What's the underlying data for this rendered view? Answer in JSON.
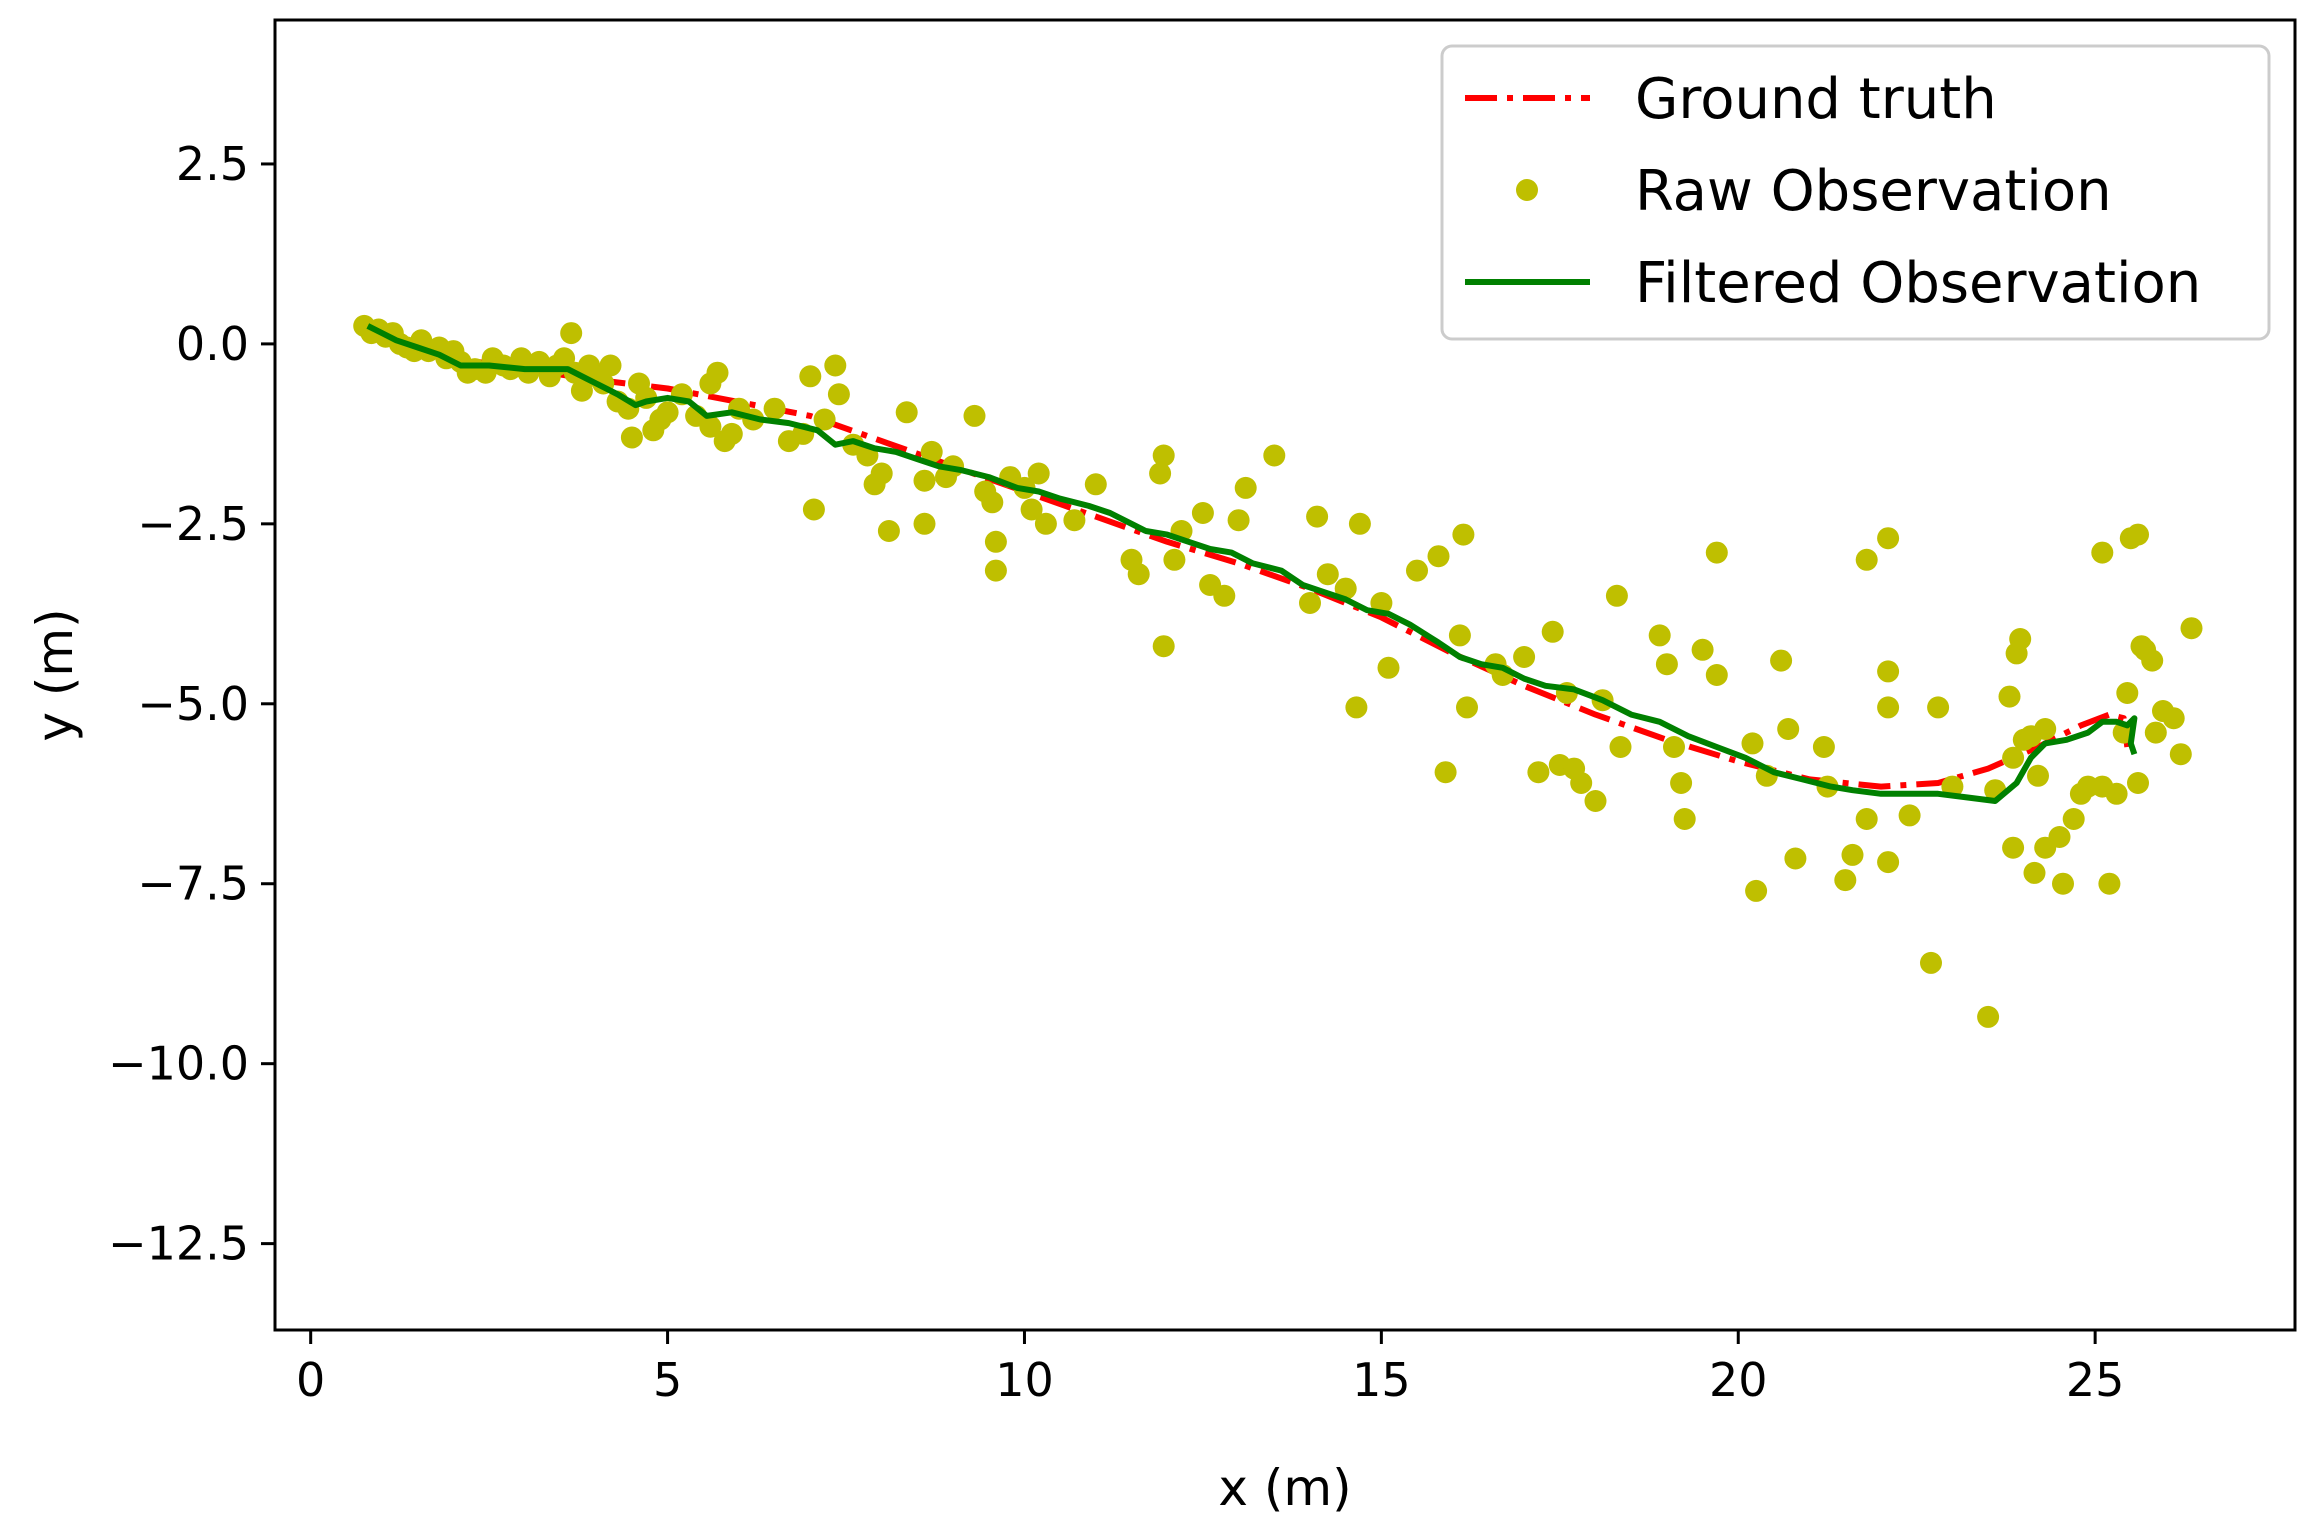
{
  "chart_data": {
    "type": "line",
    "title": "",
    "xlabel": "x (m)",
    "ylabel": "y (m)",
    "xlim": [
      -0.5,
      27.8
    ],
    "ylim": [
      -13.7,
      4.5
    ],
    "xticks": [
      0,
      5,
      10,
      15,
      20,
      25
    ],
    "yticks": [
      2.5,
      0.0,
      -2.5,
      -5.0,
      -7.5,
      -10.0,
      -12.5
    ],
    "xtick_labels": [
      "0",
      "5",
      "10",
      "15",
      "20",
      "25"
    ],
    "ytick_labels": [
      "2.5",
      "0.0",
      "−2.5",
      "−5.0",
      "−7.5",
      "−10.0",
      "−12.5"
    ],
    "grid": false,
    "legend_position": "top-right",
    "colors": {
      "ground_truth": "#ff0000",
      "raw": "#bfbf00",
      "filtered": "#008000"
    },
    "series": [
      {
        "name": "Ground truth",
        "style": "dashdot",
        "points": [
          [
            0.8,
            0.2
          ],
          [
            2,
            -0.2
          ],
          [
            3,
            -0.35
          ],
          [
            4,
            -0.5
          ],
          [
            5,
            -0.62
          ],
          [
            5.7,
            -0.75
          ],
          [
            7,
            -1.0
          ],
          [
            8,
            -1.35
          ],
          [
            9,
            -1.7
          ],
          [
            10,
            -2.05
          ],
          [
            11,
            -2.4
          ],
          [
            12,
            -2.75
          ],
          [
            13,
            -3.05
          ],
          [
            14,
            -3.4
          ],
          [
            15,
            -3.8
          ],
          [
            16,
            -4.3
          ],
          [
            17,
            -4.75
          ],
          [
            18,
            -5.15
          ],
          [
            19,
            -5.5
          ],
          [
            20,
            -5.8
          ],
          [
            21,
            -6.05
          ],
          [
            22,
            -6.15
          ],
          [
            22.8,
            -6.1
          ],
          [
            23.5,
            -5.9
          ],
          [
            24.2,
            -5.6
          ],
          [
            24.8,
            -5.3
          ],
          [
            25.2,
            -5.15
          ],
          [
            25.4,
            -5.2
          ],
          [
            25.45,
            -5.6
          ]
        ]
      },
      {
        "name": "Raw Observation",
        "style": "markers",
        "points": [
          [
            0.75,
            0.25
          ],
          [
            0.85,
            0.15
          ],
          [
            0.95,
            0.2
          ],
          [
            1.05,
            0.1
          ],
          [
            1.15,
            0.15
          ],
          [
            1.25,
            0.0
          ],
          [
            1.35,
            -0.05
          ],
          [
            1.45,
            -0.1
          ],
          [
            1.55,
            0.05
          ],
          [
            1.65,
            -0.1
          ],
          [
            1.8,
            -0.05
          ],
          [
            1.9,
            -0.2
          ],
          [
            2.0,
            -0.1
          ],
          [
            2.1,
            -0.25
          ],
          [
            2.2,
            -0.4
          ],
          [
            2.3,
            -0.35
          ],
          [
            2.45,
            -0.4
          ],
          [
            2.55,
            -0.2
          ],
          [
            2.7,
            -0.3
          ],
          [
            2.8,
            -0.35
          ],
          [
            2.95,
            -0.2
          ],
          [
            3.05,
            -0.4
          ],
          [
            3.2,
            -0.25
          ],
          [
            3.35,
            -0.45
          ],
          [
            3.45,
            -0.3
          ],
          [
            3.55,
            -0.2
          ],
          [
            3.65,
            0.15
          ],
          [
            3.7,
            -0.4
          ],
          [
            3.8,
            -0.65
          ],
          [
            3.9,
            -0.3
          ],
          [
            4.0,
            -0.45
          ],
          [
            4.1,
            -0.55
          ],
          [
            4.2,
            -0.3
          ],
          [
            4.3,
            -0.8
          ],
          [
            4.45,
            -0.9
          ],
          [
            4.5,
            -1.3
          ],
          [
            4.6,
            -0.55
          ],
          [
            4.7,
            -0.75
          ],
          [
            4.8,
            -1.2
          ],
          [
            4.9,
            -1.05
          ],
          [
            5.0,
            -0.95
          ],
          [
            5.2,
            -0.7
          ],
          [
            5.4,
            -1.0
          ],
          [
            5.6,
            -0.55
          ],
          [
            5.6,
            -1.15
          ],
          [
            5.7,
            -0.4
          ],
          [
            5.8,
            -1.35
          ],
          [
            5.9,
            -1.25
          ],
          [
            6.0,
            -0.9
          ],
          [
            6.2,
            -1.05
          ],
          [
            6.5,
            -0.9
          ],
          [
            6.7,
            -1.35
          ],
          [
            6.9,
            -1.25
          ],
          [
            7.0,
            -0.45
          ],
          [
            7.05,
            -2.3
          ],
          [
            7.2,
            -1.05
          ],
          [
            7.35,
            -0.3
          ],
          [
            7.4,
            -0.7
          ],
          [
            7.6,
            -1.4
          ],
          [
            7.8,
            -1.55
          ],
          [
            7.9,
            -1.95
          ],
          [
            8.0,
            -1.8
          ],
          [
            8.1,
            -2.6
          ],
          [
            8.35,
            -0.95
          ],
          [
            8.6,
            -1.9
          ],
          [
            8.6,
            -2.5
          ],
          [
            8.7,
            -1.5
          ],
          [
            8.9,
            -1.85
          ],
          [
            9.0,
            -1.7
          ],
          [
            9.3,
            -1.0
          ],
          [
            9.45,
            -2.05
          ],
          [
            9.55,
            -2.2
          ],
          [
            9.6,
            -2.75
          ],
          [
            9.6,
            -3.15
          ],
          [
            9.8,
            -1.85
          ],
          [
            10.0,
            -2.0
          ],
          [
            10.1,
            -2.3
          ],
          [
            10.2,
            -1.8
          ],
          [
            10.3,
            -2.5
          ],
          [
            10.7,
            -2.45
          ],
          [
            11.0,
            -1.95
          ],
          [
            11.5,
            -3.0
          ],
          [
            11.6,
            -3.2
          ],
          [
            11.9,
            -1.8
          ],
          [
            11.95,
            -1.55
          ],
          [
            11.95,
            -4.2
          ],
          [
            12.1,
            -3.0
          ],
          [
            12.2,
            -2.6
          ],
          [
            12.5,
            -2.35
          ],
          [
            12.6,
            -3.35
          ],
          [
            12.8,
            -3.5
          ],
          [
            13.0,
            -2.45
          ],
          [
            13.1,
            -2.0
          ],
          [
            13.5,
            -1.55
          ],
          [
            14.0,
            -3.6
          ],
          [
            14.1,
            -2.4
          ],
          [
            14.25,
            -3.2
          ],
          [
            14.5,
            -3.4
          ],
          [
            14.65,
            -5.05
          ],
          [
            14.7,
            -2.5
          ],
          [
            15.0,
            -3.6
          ],
          [
            15.1,
            -4.5
          ],
          [
            15.5,
            -3.15
          ],
          [
            15.8,
            -2.95
          ],
          [
            15.9,
            -5.95
          ],
          [
            16.1,
            -4.05
          ],
          [
            16.15,
            -2.65
          ],
          [
            16.2,
            -5.05
          ],
          [
            16.6,
            -4.45
          ],
          [
            16.7,
            -4.6
          ],
          [
            17.0,
            -4.35
          ],
          [
            17.2,
            -5.95
          ],
          [
            17.4,
            -4.0
          ],
          [
            17.5,
            -5.85
          ],
          [
            17.6,
            -4.85
          ],
          [
            17.7,
            -5.9
          ],
          [
            17.8,
            -6.1
          ],
          [
            18.0,
            -6.35
          ],
          [
            18.1,
            -4.95
          ],
          [
            18.3,
            -3.5
          ],
          [
            18.35,
            -5.6
          ],
          [
            18.9,
            -4.05
          ],
          [
            19.0,
            -4.45
          ],
          [
            19.1,
            -5.6
          ],
          [
            19.2,
            -6.1
          ],
          [
            19.25,
            -6.6
          ],
          [
            19.5,
            -4.25
          ],
          [
            19.7,
            -4.6
          ],
          [
            19.7,
            -2.9
          ],
          [
            20.2,
            -5.55
          ],
          [
            20.25,
            -7.6
          ],
          [
            20.4,
            -6.0
          ],
          [
            20.6,
            -4.4
          ],
          [
            20.7,
            -5.35
          ],
          [
            20.8,
            -7.15
          ],
          [
            21.2,
            -5.6
          ],
          [
            21.25,
            -6.15
          ],
          [
            21.5,
            -7.45
          ],
          [
            21.6,
            -7.1
          ],
          [
            21.8,
            -6.6
          ],
          [
            21.8,
            -3.0
          ],
          [
            22.1,
            -2.7
          ],
          [
            22.1,
            -4.55
          ],
          [
            22.1,
            -5.05
          ],
          [
            22.1,
            -7.2
          ],
          [
            22.4,
            -6.55
          ],
          [
            22.7,
            -8.6
          ],
          [
            22.8,
            -5.05
          ],
          [
            23.0,
            -6.15
          ],
          [
            23.5,
            -9.35
          ],
          [
            23.6,
            -6.2
          ],
          [
            23.8,
            -4.9
          ],
          [
            23.85,
            -5.75
          ],
          [
            23.85,
            -7.0
          ],
          [
            23.9,
            -4.3
          ],
          [
            23.95,
            -4.1
          ],
          [
            24.0,
            -5.5
          ],
          [
            24.1,
            -5.45
          ],
          [
            24.15,
            -7.35
          ],
          [
            24.2,
            -6.0
          ],
          [
            24.3,
            -5.35
          ],
          [
            24.3,
            -7.0
          ],
          [
            24.5,
            -6.85
          ],
          [
            24.55,
            -7.5
          ],
          [
            24.7,
            -6.6
          ],
          [
            24.8,
            -6.25
          ],
          [
            24.9,
            -6.15
          ],
          [
            25.1,
            -2.9
          ],
          [
            25.1,
            -6.15
          ],
          [
            25.2,
            -7.5
          ],
          [
            25.3,
            -6.25
          ],
          [
            25.4,
            -5.4
          ],
          [
            25.45,
            -4.85
          ],
          [
            25.5,
            -2.7
          ],
          [
            25.6,
            -2.65
          ],
          [
            25.6,
            -6.1
          ],
          [
            25.65,
            -4.2
          ],
          [
            25.7,
            -4.25
          ],
          [
            25.8,
            -4.4
          ],
          [
            25.85,
            -5.4
          ],
          [
            25.95,
            -5.1
          ],
          [
            26.1,
            -5.2
          ],
          [
            26.2,
            -5.7
          ],
          [
            26.35,
            -3.95
          ]
        ]
      },
      {
        "name": "Filtered Observation",
        "style": "solid",
        "points": [
          [
            0.8,
            0.25
          ],
          [
            1.2,
            0.05
          ],
          [
            1.5,
            -0.05
          ],
          [
            1.8,
            -0.15
          ],
          [
            2.1,
            -0.3
          ],
          [
            2.5,
            -0.3
          ],
          [
            3.0,
            -0.35
          ],
          [
            3.3,
            -0.35
          ],
          [
            3.6,
            -0.35
          ],
          [
            4.0,
            -0.55
          ],
          [
            4.3,
            -0.7
          ],
          [
            4.55,
            -0.85
          ],
          [
            4.7,
            -0.8
          ],
          [
            5.0,
            -0.75
          ],
          [
            5.3,
            -0.8
          ],
          [
            5.55,
            -1.0
          ],
          [
            5.9,
            -0.95
          ],
          [
            6.3,
            -1.05
          ],
          [
            6.7,
            -1.1
          ],
          [
            7.1,
            -1.2
          ],
          [
            7.35,
            -1.4
          ],
          [
            7.6,
            -1.35
          ],
          [
            7.9,
            -1.45
          ],
          [
            8.2,
            -1.5
          ],
          [
            8.5,
            -1.6
          ],
          [
            8.8,
            -1.7
          ],
          [
            9.1,
            -1.75
          ],
          [
            9.5,
            -1.85
          ],
          [
            9.9,
            -2.0
          ],
          [
            10.2,
            -2.05
          ],
          [
            10.5,
            -2.15
          ],
          [
            10.9,
            -2.25
          ],
          [
            11.2,
            -2.35
          ],
          [
            11.5,
            -2.5
          ],
          [
            11.7,
            -2.6
          ],
          [
            12.0,
            -2.65
          ],
          [
            12.3,
            -2.75
          ],
          [
            12.6,
            -2.85
          ],
          [
            12.9,
            -2.9
          ],
          [
            13.2,
            -3.05
          ],
          [
            13.6,
            -3.15
          ],
          [
            13.9,
            -3.35
          ],
          [
            14.2,
            -3.45
          ],
          [
            14.5,
            -3.55
          ],
          [
            14.8,
            -3.7
          ],
          [
            15.1,
            -3.75
          ],
          [
            15.4,
            -3.9
          ],
          [
            15.8,
            -4.15
          ],
          [
            16.1,
            -4.35
          ],
          [
            16.4,
            -4.45
          ],
          [
            16.7,
            -4.5
          ],
          [
            17.0,
            -4.65
          ],
          [
            17.3,
            -4.75
          ],
          [
            17.7,
            -4.8
          ],
          [
            18.1,
            -4.95
          ],
          [
            18.5,
            -5.15
          ],
          [
            18.9,
            -5.25
          ],
          [
            19.3,
            -5.45
          ],
          [
            19.7,
            -5.6
          ],
          [
            20.1,
            -5.75
          ],
          [
            20.5,
            -5.95
          ],
          [
            20.9,
            -6.05
          ],
          [
            21.3,
            -6.15
          ],
          [
            21.6,
            -6.2
          ],
          [
            22.0,
            -6.25
          ],
          [
            22.4,
            -6.25
          ],
          [
            22.8,
            -6.25
          ],
          [
            23.2,
            -6.3
          ],
          [
            23.6,
            -6.35
          ],
          [
            23.9,
            -6.1
          ],
          [
            24.1,
            -5.75
          ],
          [
            24.3,
            -5.55
          ],
          [
            24.6,
            -5.5
          ],
          [
            24.9,
            -5.4
          ],
          [
            25.1,
            -5.25
          ],
          [
            25.3,
            -5.25
          ],
          [
            25.45,
            -5.3
          ],
          [
            25.55,
            -5.2
          ],
          [
            25.5,
            -5.55
          ],
          [
            25.55,
            -5.7
          ]
        ]
      }
    ]
  }
}
